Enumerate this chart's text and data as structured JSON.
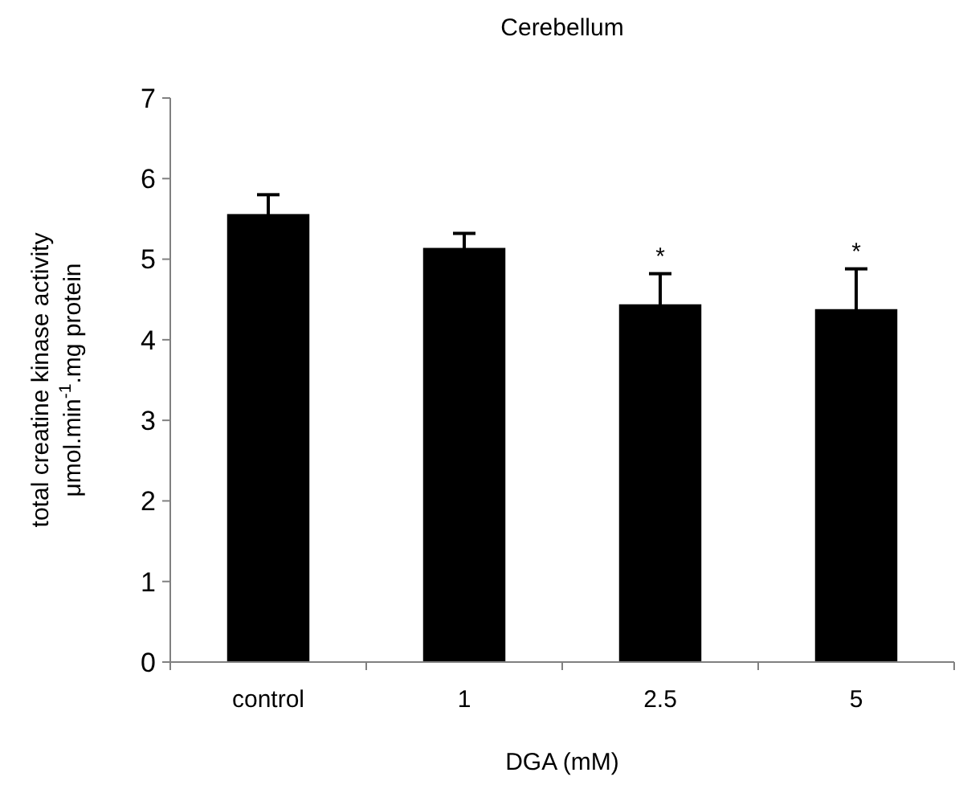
{
  "chart_data": {
    "type": "bar",
    "title": "Cerebellum",
    "xlabel": "DGA (mM)",
    "ylabel": "total creatine kinase activity\nμmol.min$^{-1}$.mg protein",
    "categories": [
      "control",
      "1",
      "2.5",
      "5"
    ],
    "values": [
      5.56,
      5.14,
      4.44,
      4.38
    ],
    "errors": [
      0.24,
      0.18,
      0.38,
      0.5
    ],
    "color": "#000000",
    "ylim": [
      0,
      7
    ],
    "yticks": [
      0,
      1,
      2,
      3,
      4,
      5,
      6,
      7
    ],
    "grid": false,
    "annotations": [
      {
        "text": "*",
        "x": "2.5",
        "y": 4.44
      },
      {
        "text": "*",
        "x": "5",
        "y": 4.38
      }
    ]
  }
}
